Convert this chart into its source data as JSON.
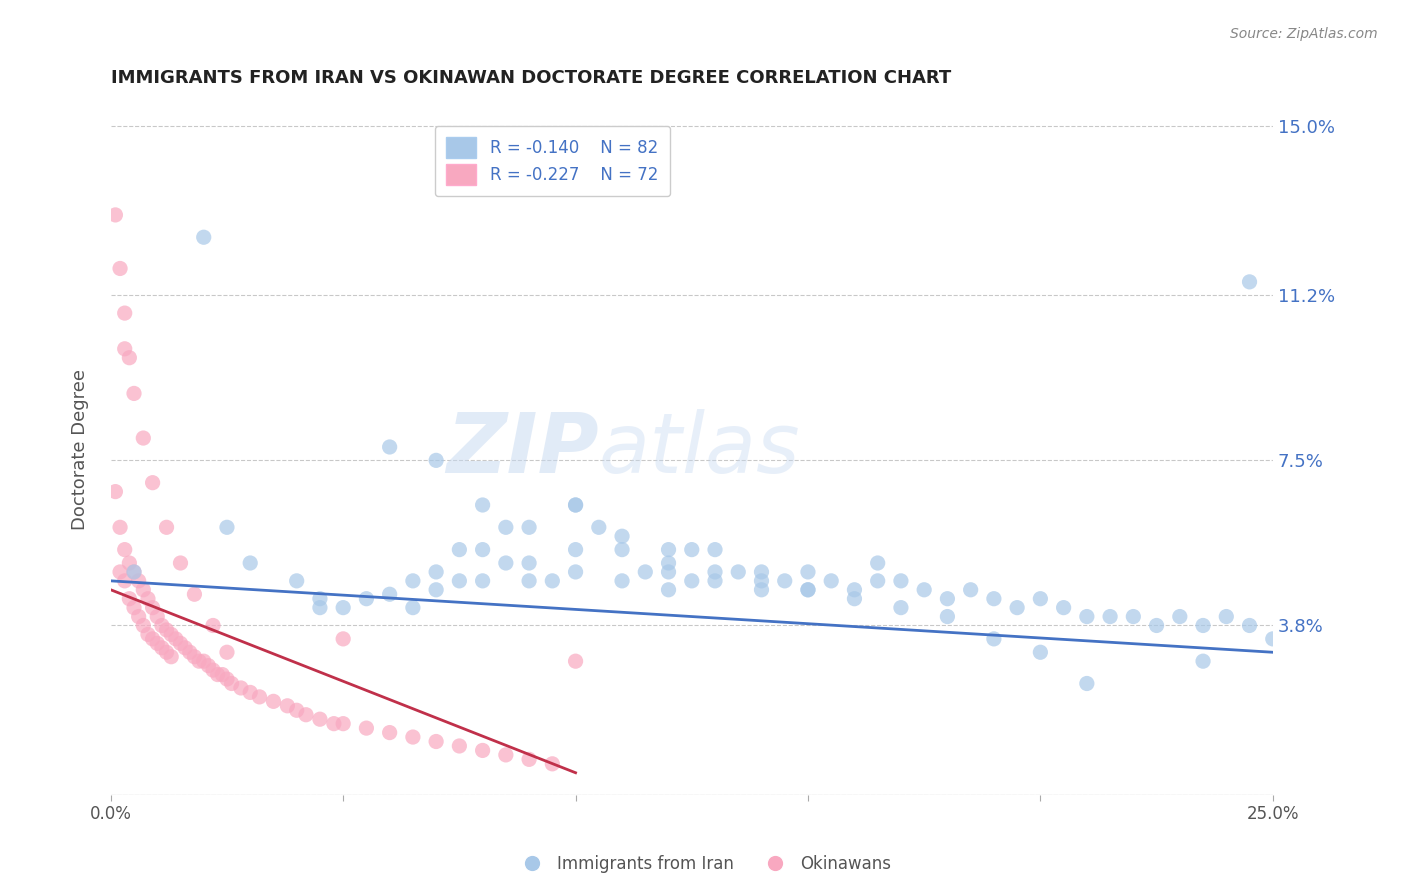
{
  "title": "IMMIGRANTS FROM IRAN VS OKINAWAN DOCTORATE DEGREE CORRELATION CHART",
  "source": "Source: ZipAtlas.com",
  "ylabel": "Doctorate Degree",
  "legend_label1": "Immigrants from Iran",
  "legend_label2": "Okinawans",
  "r1": -0.14,
  "n1": 82,
  "r2": -0.227,
  "n2": 72,
  "color_blue": "#a8c8e8",
  "color_pink": "#f8a8c0",
  "color_line_blue": "#4472c4",
  "color_line_pink": "#c0304a",
  "color_text_blue": "#4472c4",
  "xlim": [
    0.0,
    0.25
  ],
  "ylim": [
    0.0,
    0.155
  ],
  "ytick_positions": [
    0.0,
    0.038,
    0.075,
    0.112,
    0.15
  ],
  "ytick_labels": [
    "",
    "3.8%",
    "7.5%",
    "11.2%",
    "15.0%"
  ],
  "watermark": "ZIPatlas",
  "background": "#ffffff",
  "grid_color": "#bbbbbb",
  "blue_x": [
    0.005,
    0.02,
    0.025,
    0.03,
    0.04,
    0.045,
    0.045,
    0.05,
    0.055,
    0.06,
    0.065,
    0.065,
    0.07,
    0.07,
    0.075,
    0.075,
    0.08,
    0.08,
    0.085,
    0.085,
    0.09,
    0.09,
    0.095,
    0.1,
    0.1,
    0.1,
    0.105,
    0.11,
    0.11,
    0.115,
    0.12,
    0.12,
    0.12,
    0.125,
    0.125,
    0.13,
    0.13,
    0.135,
    0.14,
    0.14,
    0.145,
    0.15,
    0.15,
    0.155,
    0.16,
    0.165,
    0.165,
    0.17,
    0.175,
    0.18,
    0.185,
    0.19,
    0.195,
    0.2,
    0.205,
    0.21,
    0.215,
    0.22,
    0.225,
    0.23,
    0.235,
    0.24,
    0.245,
    0.25,
    0.06,
    0.07,
    0.08,
    0.09,
    0.1,
    0.11,
    0.12,
    0.13,
    0.14,
    0.15,
    0.16,
    0.17,
    0.18,
    0.19,
    0.2,
    0.21,
    0.235,
    0.245
  ],
  "blue_y": [
    0.05,
    0.125,
    0.06,
    0.052,
    0.048,
    0.044,
    0.042,
    0.042,
    0.044,
    0.045,
    0.042,
    0.048,
    0.046,
    0.05,
    0.048,
    0.055,
    0.048,
    0.055,
    0.052,
    0.06,
    0.048,
    0.052,
    0.048,
    0.05,
    0.055,
    0.065,
    0.06,
    0.048,
    0.055,
    0.05,
    0.046,
    0.05,
    0.055,
    0.048,
    0.055,
    0.048,
    0.055,
    0.05,
    0.046,
    0.05,
    0.048,
    0.046,
    0.05,
    0.048,
    0.046,
    0.048,
    0.052,
    0.048,
    0.046,
    0.044,
    0.046,
    0.044,
    0.042,
    0.044,
    0.042,
    0.04,
    0.04,
    0.04,
    0.038,
    0.04,
    0.038,
    0.04,
    0.038,
    0.035,
    0.078,
    0.075,
    0.065,
    0.06,
    0.065,
    0.058,
    0.052,
    0.05,
    0.048,
    0.046,
    0.044,
    0.042,
    0.04,
    0.035,
    0.032,
    0.025,
    0.03,
    0.115
  ],
  "pink_x": [
    0.001,
    0.002,
    0.002,
    0.003,
    0.003,
    0.004,
    0.004,
    0.005,
    0.005,
    0.006,
    0.006,
    0.007,
    0.007,
    0.008,
    0.008,
    0.009,
    0.009,
    0.01,
    0.01,
    0.011,
    0.011,
    0.012,
    0.012,
    0.013,
    0.013,
    0.014,
    0.015,
    0.016,
    0.017,
    0.018,
    0.019,
    0.02,
    0.021,
    0.022,
    0.023,
    0.024,
    0.025,
    0.026,
    0.028,
    0.03,
    0.032,
    0.035,
    0.038,
    0.04,
    0.042,
    0.045,
    0.048,
    0.05,
    0.055,
    0.06,
    0.065,
    0.07,
    0.075,
    0.08,
    0.085,
    0.09,
    0.095,
    0.1,
    0.003,
    0.005,
    0.007,
    0.009,
    0.012,
    0.015,
    0.018,
    0.022,
    0.025,
    0.001,
    0.002,
    0.003,
    0.004,
    0.05
  ],
  "pink_y": [
    0.068,
    0.06,
    0.05,
    0.055,
    0.048,
    0.052,
    0.044,
    0.05,
    0.042,
    0.048,
    0.04,
    0.046,
    0.038,
    0.044,
    0.036,
    0.042,
    0.035,
    0.04,
    0.034,
    0.038,
    0.033,
    0.037,
    0.032,
    0.036,
    0.031,
    0.035,
    0.034,
    0.033,
    0.032,
    0.031,
    0.03,
    0.03,
    0.029,
    0.028,
    0.027,
    0.027,
    0.026,
    0.025,
    0.024,
    0.023,
    0.022,
    0.021,
    0.02,
    0.019,
    0.018,
    0.017,
    0.016,
    0.016,
    0.015,
    0.014,
    0.013,
    0.012,
    0.011,
    0.01,
    0.009,
    0.008,
    0.007,
    0.03,
    0.1,
    0.09,
    0.08,
    0.07,
    0.06,
    0.052,
    0.045,
    0.038,
    0.032,
    0.13,
    0.118,
    0.108,
    0.098,
    0.035
  ],
  "blue_line_x": [
    0.0,
    0.25
  ],
  "blue_line_y": [
    0.048,
    0.032
  ],
  "pink_line_x": [
    0.0,
    0.1
  ],
  "pink_line_y": [
    0.046,
    0.005
  ]
}
